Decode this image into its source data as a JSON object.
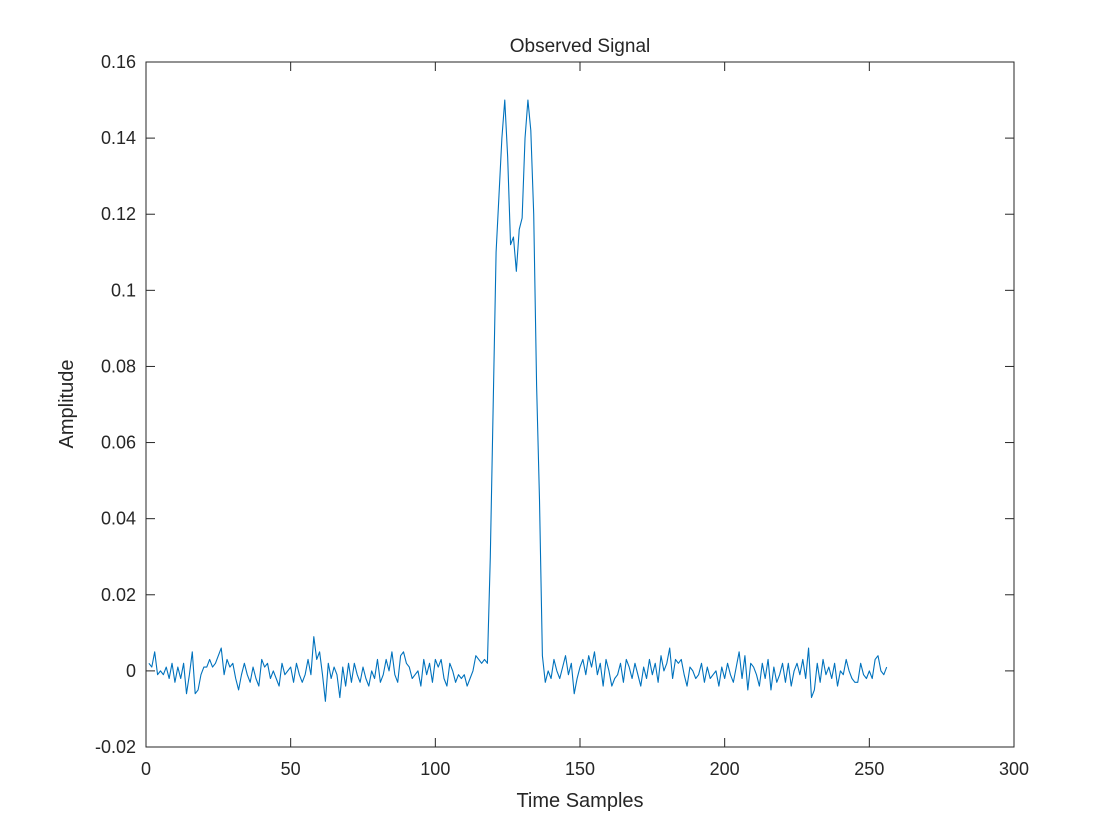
{
  "chart_data": {
    "type": "line",
    "title": "Observed Signal",
    "x_label": "Time Samples",
    "y_label": "Amplitude",
    "x": [
      1,
      2,
      3,
      4,
      5,
      6,
      7,
      8,
      9,
      10,
      11,
      12,
      13,
      14,
      15,
      16,
      17,
      18,
      19,
      20,
      21,
      22,
      23,
      24,
      25,
      26,
      27,
      28,
      29,
      30,
      31,
      32,
      33,
      34,
      35,
      36,
      37,
      38,
      39,
      40,
      41,
      42,
      43,
      44,
      45,
      46,
      47,
      48,
      49,
      50,
      51,
      52,
      53,
      54,
      55,
      56,
      57,
      58,
      59,
      60,
      61,
      62,
      63,
      64,
      65,
      66,
      67,
      68,
      69,
      70,
      71,
      72,
      73,
      74,
      75,
      76,
      77,
      78,
      79,
      80,
      81,
      82,
      83,
      84,
      85,
      86,
      87,
      88,
      89,
      90,
      91,
      92,
      93,
      94,
      95,
      96,
      97,
      98,
      99,
      100,
      101,
      102,
      103,
      104,
      105,
      106,
      107,
      108,
      109,
      110,
      111,
      112,
      113,
      114,
      115,
      116,
      117,
      118,
      119,
      120,
      121,
      122,
      123,
      124,
      125,
      126,
      127,
      128,
      129,
      130,
      131,
      132,
      133,
      134,
      135,
      136,
      137,
      138,
      139,
      140,
      141,
      142,
      143,
      144,
      145,
      146,
      147,
      148,
      149,
      150,
      151,
      152,
      153,
      154,
      155,
      156,
      157,
      158,
      159,
      160,
      161,
      162,
      163,
      164,
      165,
      166,
      167,
      168,
      169,
      170,
      171,
      172,
      173,
      174,
      175,
      176,
      177,
      178,
      179,
      180,
      181,
      182,
      183,
      184,
      185,
      186,
      187,
      188,
      189,
      190,
      191,
      192,
      193,
      194,
      195,
      196,
      197,
      198,
      199,
      200,
      201,
      202,
      203,
      204,
      205,
      206,
      207,
      208,
      209,
      210,
      211,
      212,
      213,
      214,
      215,
      216,
      217,
      218,
      219,
      220,
      221,
      222,
      223,
      224,
      225,
      226,
      227,
      228,
      229,
      230,
      231,
      232,
      233,
      234,
      235,
      236,
      237,
      238,
      239,
      240,
      241,
      242,
      243,
      244,
      245,
      246,
      247,
      248,
      249,
      250,
      251,
      252,
      253,
      254,
      255,
      256
    ],
    "series": [
      {
        "color": "#0072bd",
        "values": [
          0.002,
          0.001,
          0.005,
          -0.001,
          0.0,
          -0.001,
          0.001,
          -0.002,
          0.002,
          -0.003,
          0.001,
          -0.002,
          0.002,
          -0.006,
          -0.001,
          0.005,
          -0.006,
          -0.005,
          -0.001,
          0.001,
          0.001,
          0.003,
          0.001,
          0.002,
          0.004,
          0.006,
          -0.001,
          0.003,
          0.001,
          0.002,
          -0.002,
          -0.005,
          -0.001,
          0.002,
          -0.001,
          -0.003,
          0.001,
          -0.002,
          -0.004,
          0.003,
          0.001,
          0.002,
          -0.002,
          0.0,
          -0.002,
          -0.004,
          0.002,
          -0.001,
          0.0,
          0.001,
          -0.003,
          0.002,
          -0.001,
          -0.003,
          -0.001,
          0.003,
          -0.001,
          0.009,
          0.003,
          0.005,
          -0.001,
          -0.008,
          0.002,
          -0.002,
          0.001,
          -0.001,
          -0.007,
          0.001,
          -0.004,
          0.002,
          -0.003,
          0.002,
          -0.001,
          -0.003,
          0.001,
          -0.002,
          -0.004,
          0.0,
          -0.002,
          0.003,
          -0.003,
          -0.001,
          0.003,
          0.0,
          0.005,
          -0.001,
          -0.003,
          0.004,
          0.005,
          0.002,
          0.001,
          -0.002,
          -0.001,
          0.0,
          -0.004,
          0.003,
          -0.001,
          0.002,
          -0.003,
          0.003,
          0.001,
          0.003,
          -0.002,
          -0.004,
          0.002,
          0.0,
          -0.003,
          -0.001,
          -0.002,
          -0.001,
          -0.004,
          -0.002,
          0.0,
          0.004,
          0.003,
          0.002,
          0.003,
          0.002,
          0.03,
          0.07,
          0.11,
          0.125,
          0.14,
          0.15,
          0.135,
          0.112,
          0.114,
          0.105,
          0.116,
          0.119,
          0.14,
          0.15,
          0.142,
          0.12,
          0.075,
          0.045,
          0.004,
          -0.003,
          0.0,
          -0.002,
          0.003,
          0.0,
          -0.002,
          0.001,
          0.004,
          -0.001,
          0.002,
          -0.006,
          -0.002,
          0.001,
          0.003,
          -0.001,
          0.004,
          0.001,
          0.005,
          -0.001,
          0.002,
          -0.004,
          0.003,
          0.0,
          -0.004,
          -0.002,
          -0.001,
          0.002,
          -0.003,
          0.003,
          0.001,
          -0.002,
          0.002,
          -0.001,
          -0.004,
          0.001,
          -0.002,
          0.003,
          -0.001,
          0.002,
          -0.003,
          0.004,
          0.0,
          0.002,
          0.006,
          -0.002,
          0.003,
          0.002,
          0.003,
          -0.001,
          -0.004,
          0.001,
          0.0,
          -0.002,
          -0.001,
          0.002,
          -0.003,
          0.001,
          -0.002,
          -0.001,
          0.0,
          -0.004,
          0.001,
          -0.002,
          0.002,
          -0.001,
          -0.003,
          0.001,
          0.005,
          -0.002,
          0.004,
          -0.005,
          0.002,
          0.001,
          -0.001,
          -0.004,
          0.002,
          -0.002,
          0.003,
          -0.005,
          0.001,
          -0.003,
          -0.001,
          0.002,
          -0.003,
          0.002,
          -0.004,
          0.0,
          0.002,
          -0.001,
          0.003,
          -0.002,
          0.006,
          -0.007,
          -0.005,
          0.002,
          -0.003,
          0.003,
          -0.001,
          0.001,
          -0.002,
          0.002,
          -0.004,
          0.0,
          -0.001,
          0.003,
          0.0,
          -0.002,
          -0.003,
          -0.003,
          0.002,
          -0.001,
          -0.002,
          0.0,
          -0.002,
          0.003,
          0.004,
          0.0,
          -0.001,
          0.001
        ]
      }
    ],
    "xlim": [
      0,
      300
    ],
    "xticks": [
      0,
      50,
      100,
      150,
      200,
      250,
      300
    ],
    "ylim": [
      -0.02,
      0.16
    ],
    "yticks": [
      -0.02,
      0,
      0.02,
      0.04,
      0.06,
      0.08,
      0.1,
      0.12,
      0.14,
      0.16
    ],
    "grid": false
  }
}
